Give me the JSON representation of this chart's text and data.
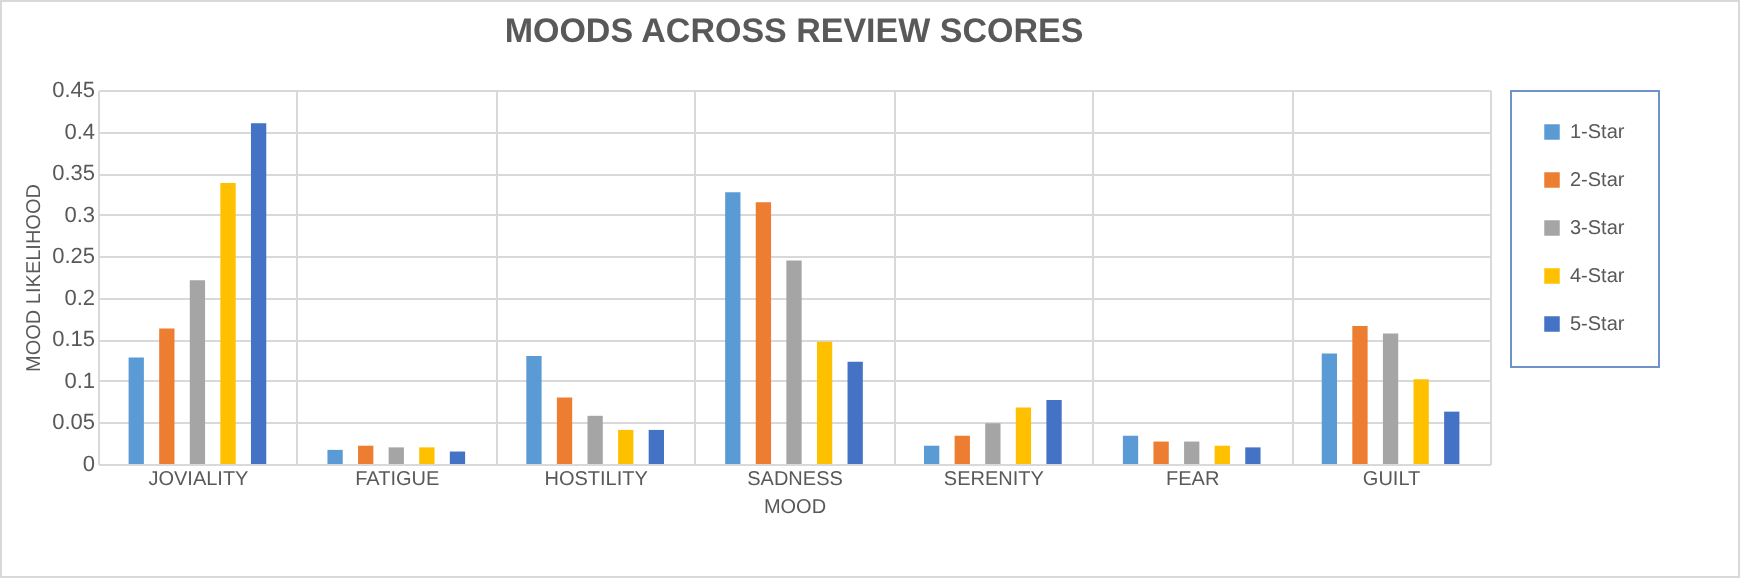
{
  "chart_data": {
    "type": "bar",
    "title": "MOODS ACROSS REVIEW SCORES",
    "xlabel": "MOOD",
    "ylabel": "MOOD LIKELIHOOD",
    "categories": [
      "JOVIALITY",
      "FATIGUE",
      "HOSTILITY",
      "SADNESS",
      "SERENITY",
      "FEAR",
      "GUILT"
    ],
    "series": [
      {
        "name": "1-Star",
        "color": "#5b9bd5",
        "values": [
          0.128,
          0.017,
          0.13,
          0.327,
          0.022,
          0.034,
          0.133
        ]
      },
      {
        "name": "2-Star",
        "color": "#ed7d31",
        "values": [
          0.163,
          0.022,
          0.08,
          0.315,
          0.034,
          0.027,
          0.166
        ]
      },
      {
        "name": "3-Star",
        "color": "#a5a5a5",
        "values": [
          0.221,
          0.02,
          0.058,
          0.245,
          0.049,
          0.027,
          0.157
        ]
      },
      {
        "name": "4-Star",
        "color": "#ffc000",
        "values": [
          0.338,
          0.02,
          0.041,
          0.147,
          0.068,
          0.022,
          0.102
        ]
      },
      {
        "name": "5-Star",
        "color": "#4472c4",
        "values": [
          0.41,
          0.015,
          0.041,
          0.123,
          0.077,
          0.02,
          0.063
        ]
      }
    ],
    "ylim": [
      0,
      0.45
    ],
    "yticks": [
      0,
      0.05,
      0.1,
      0.15,
      0.2,
      0.25,
      0.3,
      0.35,
      0.4,
      0.45
    ],
    "grid": true,
    "legend": "right"
  }
}
